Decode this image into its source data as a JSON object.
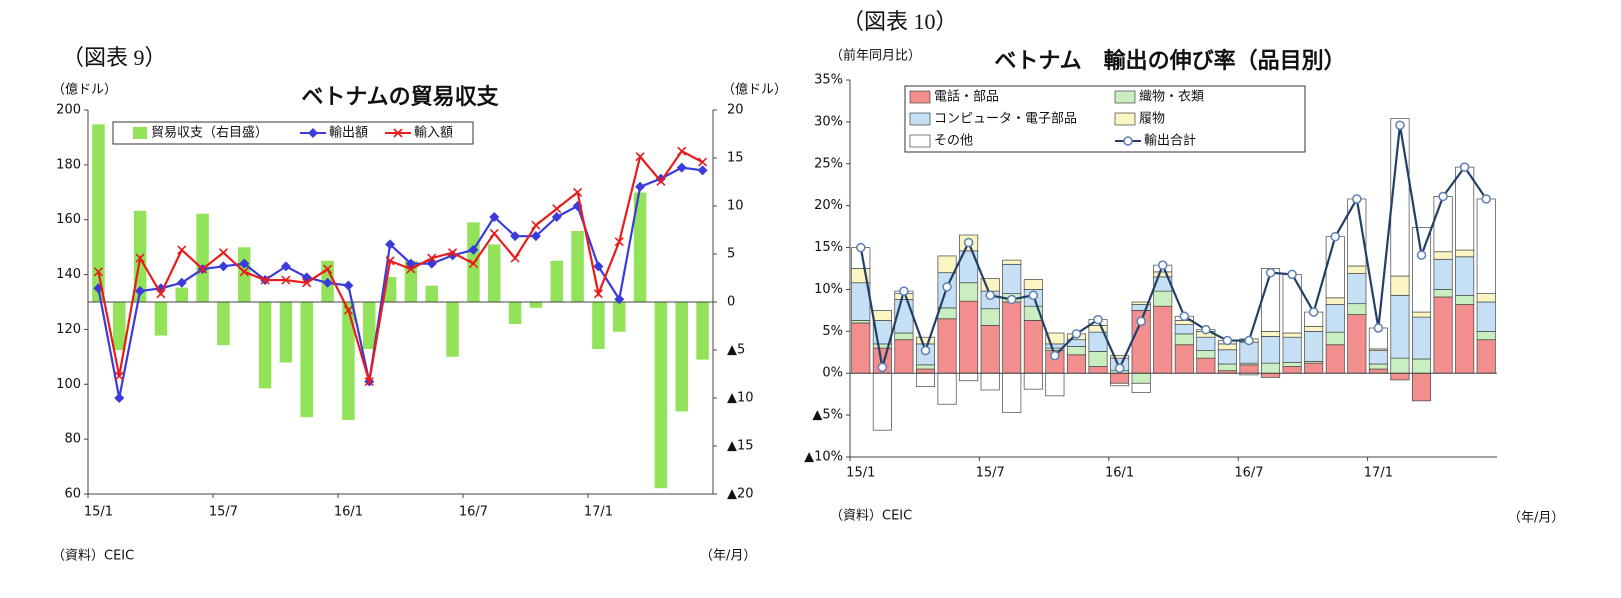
{
  "chart_data": [
    {
      "type": "combo",
      "figure_label": "（図表 9）",
      "title": "ベトナムの貿易収支",
      "ylabel": "（億ドル）",
      "y2label": "（億ドル）",
      "source": "（資料）CEIC",
      "xunit": "（年/月）",
      "categories": [
        "15/1",
        null,
        null,
        null,
        null,
        null,
        "15/7",
        null,
        null,
        null,
        null,
        null,
        "16/1",
        null,
        null,
        null,
        null,
        null,
        "16/7",
        null,
        null,
        null,
        null,
        null,
        "17/1",
        null,
        null,
        null,
        null,
        null
      ],
      "ylim": [
        60,
        200
      ],
      "yticks": [
        60,
        80,
        100,
        120,
        140,
        160,
        180,
        200
      ],
      "y2lim": [
        -20,
        20
      ],
      "y2ticks": [
        {
          "value": -20,
          "label": "▲20"
        },
        {
          "value": -15,
          "label": "▲15"
        },
        {
          "value": -10,
          "label": "▲10"
        },
        {
          "value": -5,
          "label": "▲5"
        },
        0,
        5,
        10,
        15,
        20
      ],
      "grid": false,
      "series": [
        {
          "name": "貿易収支（右目盛）",
          "type": "bar",
          "axis": "y2",
          "color": "#92e35a",
          "values": [
            18.5,
            -5,
            9.5,
            -3.5,
            1.5,
            9.2,
            -4.5,
            5.7,
            -9,
            -6.3,
            -12,
            4.3,
            -12.3,
            -4.9,
            2.6,
            4.3,
            1.7,
            -5.7,
            8.3,
            6,
            -2.3,
            -0.6,
            4.3,
            7.4,
            -4.9,
            -3.1,
            11.4,
            -19.4,
            -11.4,
            -6
          ]
        },
        {
          "name": "輸出額",
          "type": "line",
          "marker": "diamond",
          "color": "#3b3bdb",
          "values": [
            135,
            95,
            134,
            135,
            137,
            142,
            143,
            144,
            138,
            143,
            139,
            137,
            136,
            101,
            151,
            144,
            144,
            147,
            149,
            161,
            154,
            154,
            161,
            165,
            143,
            131,
            172,
            175,
            179,
            178
          ]
        },
        {
          "name": "輸入額",
          "type": "line",
          "marker": "x",
          "color": "#e81c1c",
          "values": [
            141,
            103,
            146,
            133,
            149,
            142,
            148,
            141,
            138,
            138,
            137,
            142,
            127,
            101,
            145,
            142,
            146,
            148,
            144,
            155,
            146,
            158,
            164,
            170,
            133,
            152,
            183,
            174,
            185,
            181
          ]
        }
      ]
    },
    {
      "type": "combo",
      "figure_label": "（図表 10）",
      "title": "ベトナム　輸出の伸び率（品目別）",
      "ylabel": "（前年同月比）",
      "source": "（資料）CEIC",
      "xunit": "（年/月）",
      "categories": [
        "15/1",
        null,
        null,
        null,
        null,
        null,
        "15/7",
        null,
        null,
        null,
        null,
        null,
        "16/1",
        null,
        null,
        null,
        null,
        null,
        "16/7",
        null,
        null,
        null,
        null,
        null,
        "17/1",
        null,
        null,
        null,
        null,
        null
      ],
      "ylim": [
        -10,
        35
      ],
      "yticks": [
        {
          "value": -10,
          "label": "▲10%"
        },
        {
          "value": -5,
          "label": "▲5%"
        },
        {
          "value": 0,
          "label": "0%"
        },
        {
          "value": 5,
          "label": "5%"
        },
        {
          "value": 10,
          "label": "10%"
        },
        {
          "value": 15,
          "label": "15%"
        },
        {
          "value": 20,
          "label": "20%"
        },
        {
          "value": 25,
          "label": "25%"
        },
        {
          "value": 30,
          "label": "30%"
        },
        {
          "value": 35,
          "label": "35%"
        }
      ],
      "grid": false,
      "series": [
        {
          "name": "電話・部品",
          "type": "stacked_bar",
          "color": "#f28e8e",
          "values": [
            6,
            3,
            4,
            0.5,
            6.5,
            8.6,
            5.7,
            8.5,
            6.3,
            2.7,
            2.2,
            0.8,
            -1.2,
            7.5,
            8,
            3.4,
            1.8,
            0.3,
            1,
            -0.5,
            0.8,
            1.2,
            3.4,
            7,
            0.5,
            -0.8,
            -3.3,
            9.1,
            8.2,
            4
          ]
        },
        {
          "name": "織物・衣類",
          "type": "stacked_bar",
          "color": "#c9efc1",
          "values": [
            0.3,
            0.5,
            0.8,
            0.5,
            1.3,
            2.2,
            2,
            1,
            1.7,
            0.3,
            1,
            1.8,
            0.3,
            -1.2,
            1.8,
            1.3,
            0.9,
            0.8,
            0.2,
            1.2,
            0.5,
            0.2,
            1.5,
            1.3,
            0.6,
            1.8,
            1.7,
            0.9,
            1.1,
            1
          ]
        },
        {
          "name": "コンピュータ・電子部品",
          "type": "stacked_bar",
          "color": "#c5e0f4",
          "values": [
            4.5,
            2.8,
            4,
            2.5,
            4.2,
            3.8,
            2.1,
            3.5,
            2,
            0.5,
            0.8,
            2.3,
            1.5,
            0.7,
            1.7,
            1.1,
            1.6,
            1.7,
            2.5,
            3.2,
            3,
            3.6,
            3.3,
            3.6,
            1.6,
            7.5,
            5,
            3.6,
            4.6,
            3.5
          ]
        },
        {
          "name": "履物",
          "type": "stacked_bar",
          "color": "#fbf4c3",
          "values": [
            1.7,
            1.2,
            0.7,
            0.8,
            2,
            1.9,
            1.5,
            0.5,
            1.2,
            1.3,
            0.7,
            0.8,
            0.3,
            0.3,
            0.6,
            0.5,
            0.7,
            0.7,
            0.4,
            0.6,
            0.5,
            0.6,
            0.8,
            0.9,
            0.2,
            2.3,
            0.6,
            0.9,
            0.8,
            1
          ]
        },
        {
          "name": "その他",
          "type": "stacked_bar",
          "color": "#ffffff",
          "values": [
            2.5,
            -6.8,
            0.3,
            -1.6,
            -3.7,
            -0.9,
            -2,
            -4.7,
            -1.9,
            -2.7,
            0,
            0.7,
            -0.3,
            -1.1,
            0.8,
            0.5,
            0.2,
            0.4,
            -0.2,
            7.5,
            7,
            1.7,
            7.3,
            8,
            2.5,
            18.8,
            10.1,
            6.6,
            9.9,
            11.3
          ]
        },
        {
          "name": "輸出合計",
          "type": "line",
          "marker": "circle",
          "color": "#243f66",
          "values": [
            15,
            0.7,
            9.8,
            2.7,
            10.3,
            15.6,
            9.3,
            8.8,
            9.3,
            2.1,
            4.7,
            6.4,
            0.6,
            6.2,
            12.9,
            6.8,
            5.2,
            3.9,
            3.9,
            12,
            11.8,
            7.3,
            16.3,
            20.8,
            5.4,
            29.6,
            14.1,
            21.1,
            24.6,
            20.8
          ]
        }
      ]
    }
  ]
}
